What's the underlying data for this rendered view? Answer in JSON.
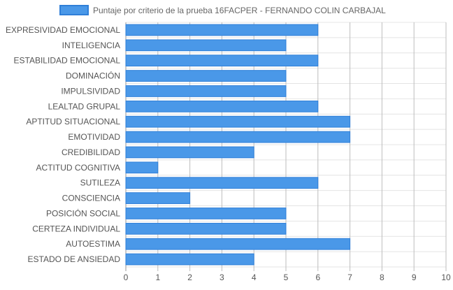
{
  "chart_data": {
    "type": "bar",
    "orientation": "horizontal",
    "title": "",
    "legend_placement": "top",
    "xlabel": "",
    "ylabel": "",
    "xlim": [
      0,
      10
    ],
    "x_ticks": [
      0,
      1,
      2,
      3,
      4,
      5,
      6,
      7,
      8,
      9,
      10
    ],
    "grid": true,
    "bar_color": "#4a98e8",
    "bar_border_color": "#2f7fd8",
    "categories": [
      "EXPRESIVIDAD EMOCIONAL",
      "INTELIGENCIA",
      "ESTABILIDAD EMOCIONAL",
      "DOMINACIÓN",
      "IMPULSIVIDAD",
      "LEALTAD GRUPAL",
      "APTITUD SITUACIONAL",
      "EMOTIVIDAD",
      "CREDIBILIDAD",
      "ACTITUD COGNITIVA",
      "SUTILEZA",
      "CONSCIENCIA",
      "POSICIÓN SOCIAL",
      "CERTEZA INDIVIDUAL",
      "AUTOESTIMA",
      "ESTADO DE ANSIEDAD"
    ],
    "series": [
      {
        "name": "Puntaje por criterio de la prueba 16FACPER - FERNANDO COLIN CARBAJAL",
        "values": [
          6,
          5,
          6,
          5,
          5,
          6,
          7,
          7,
          4,
          1,
          6,
          2,
          5,
          5,
          7,
          4
        ]
      }
    ]
  }
}
